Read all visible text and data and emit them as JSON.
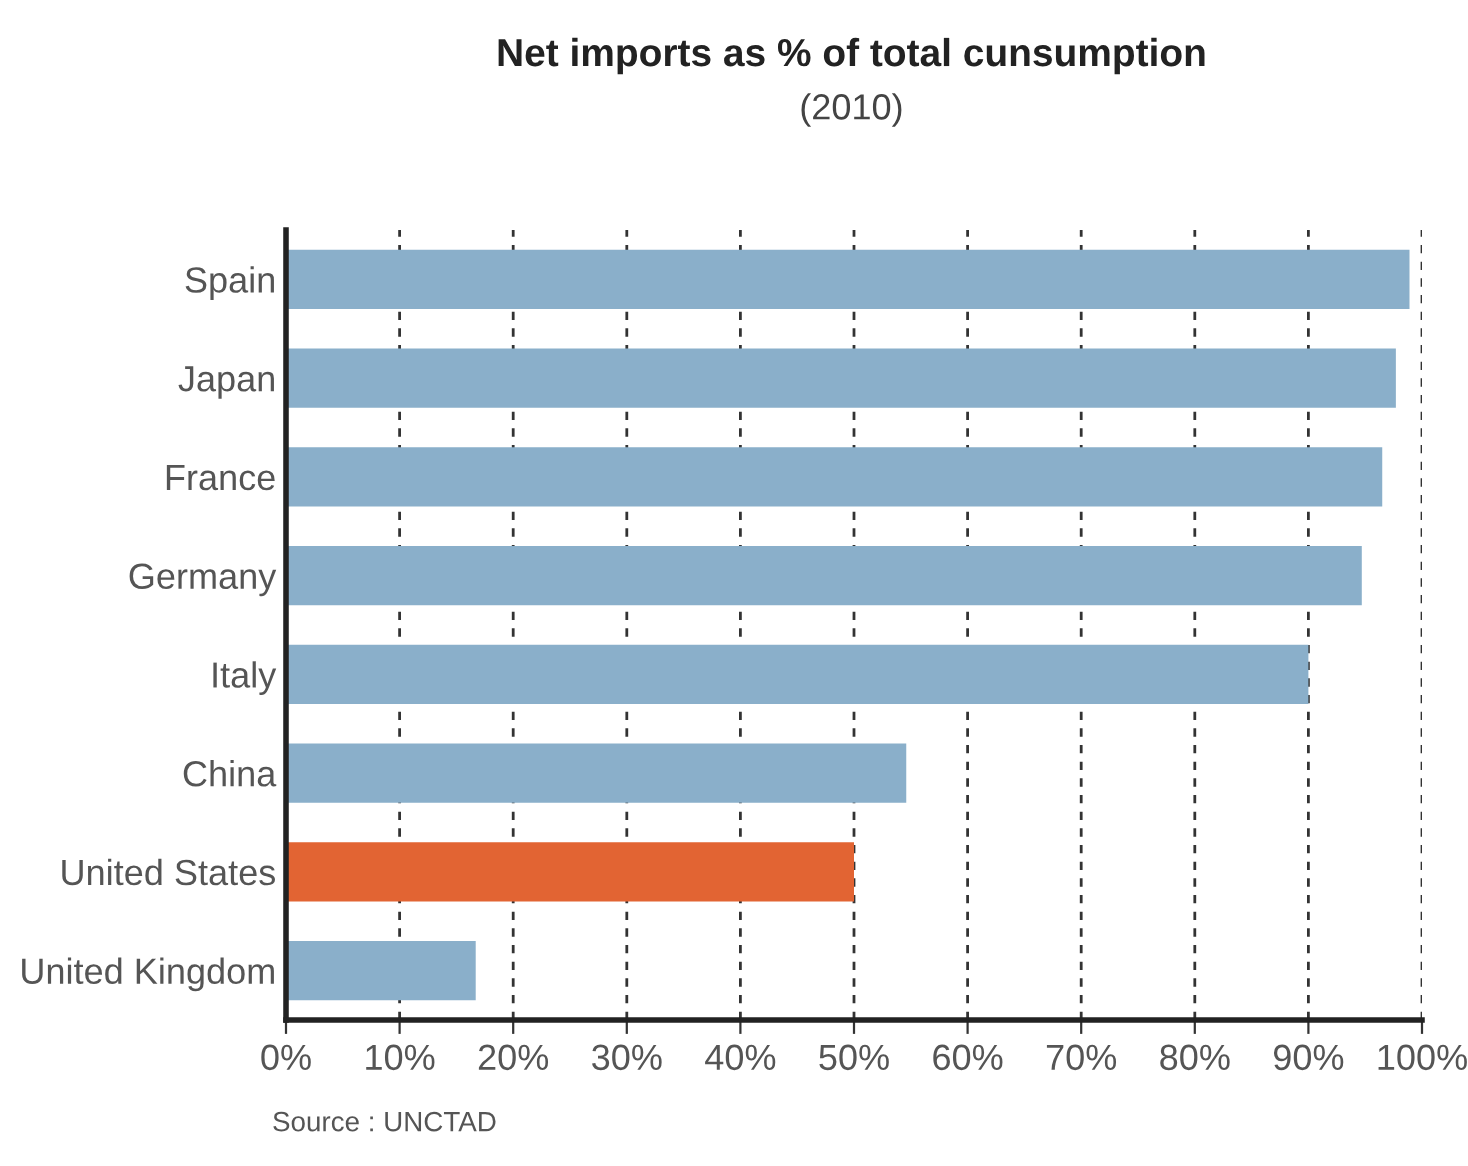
{
  "chart_data": {
    "type": "bar",
    "orientation": "horizontal",
    "title": "Net imports as % of total cunsumption",
    "subtitle": "(2010)",
    "categories": [
      "Spain",
      "Japan",
      "France",
      "Germany",
      "Italy",
      "China",
      "United States",
      "United Kingdom"
    ],
    "values": [
      98.9,
      97.7,
      96.5,
      94.7,
      90,
      54.6,
      50,
      16.7
    ],
    "colors": [
      "#8aafca",
      "#8aafca",
      "#8aafca",
      "#8aafca",
      "#8aafca",
      "#8aafca",
      "#e26433",
      "#8aafca"
    ],
    "xlim": [
      0,
      100
    ],
    "xticks": [
      {
        "value": 0,
        "label": "0%"
      },
      {
        "value": 10,
        "label": "10%"
      },
      {
        "value": 20,
        "label": "20%"
      },
      {
        "value": 30,
        "label": "30%"
      },
      {
        "value": 40,
        "label": "40%"
      },
      {
        "value": 50,
        "label": "50%"
      },
      {
        "value": 60,
        "label": "60%"
      },
      {
        "value": 70,
        "label": "70%"
      },
      {
        "value": 80,
        "label": "80%"
      },
      {
        "value": 90,
        "label": "90%"
      },
      {
        "value": 100,
        "label": "100%"
      }
    ],
    "grid": "x",
    "annotations": [
      "Source : UNCTAD"
    ]
  }
}
